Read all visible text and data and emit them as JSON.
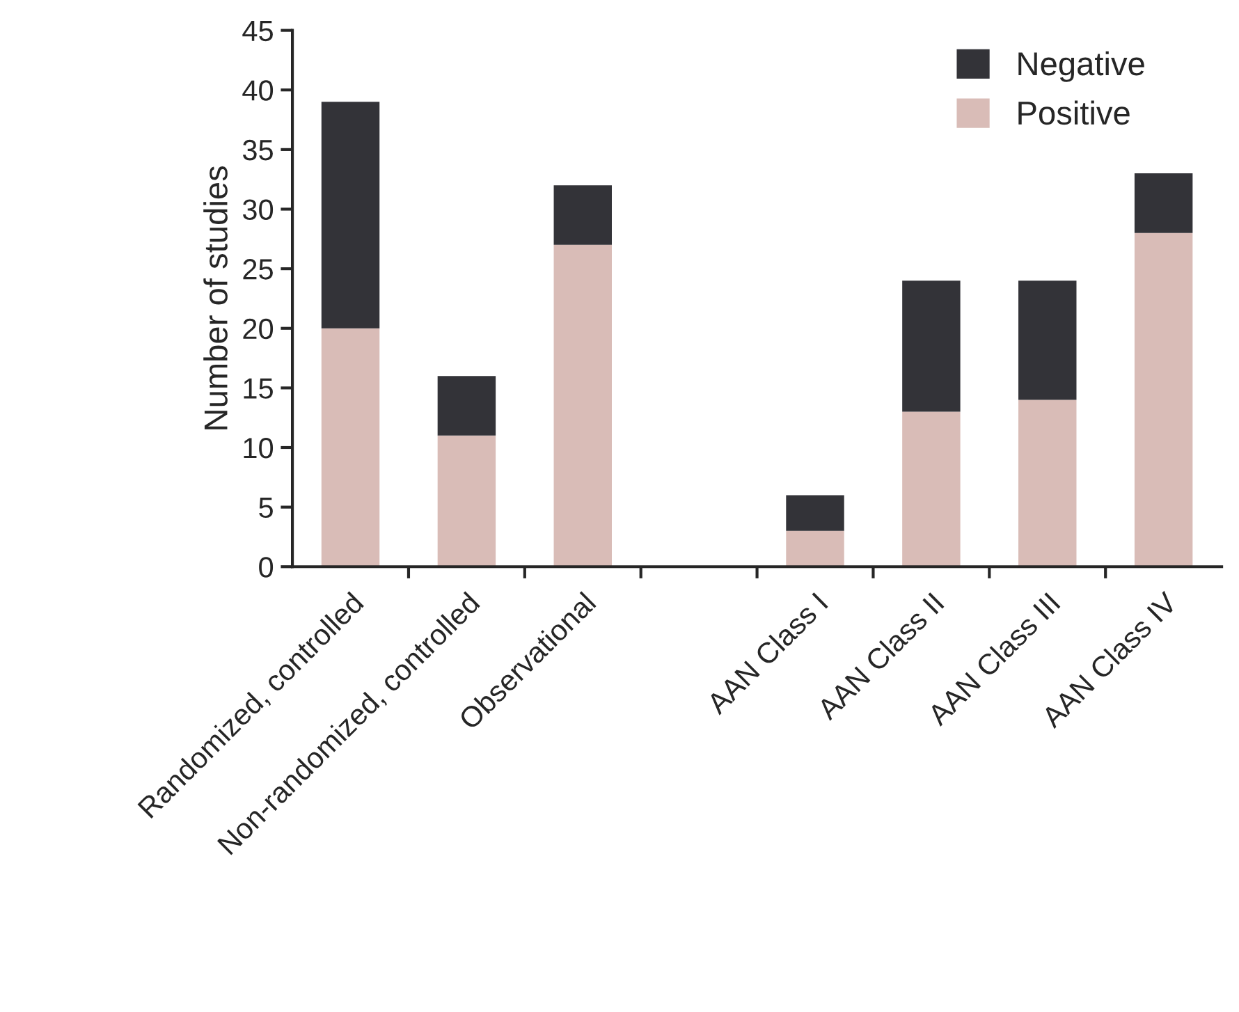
{
  "chart_data": {
    "type": "bar",
    "stacked": true,
    "ylabel": "Number of studies",
    "categories": [
      "Randomized, controlled",
      "Non-randomized, controlled",
      "Observational",
      null,
      "AAN Class I",
      "AAN Class II",
      "AAN Class III",
      "AAN Class IV"
    ],
    "series": [
      {
        "name": "Positive",
        "color": "#d9bcb7",
        "values": [
          20,
          11,
          27,
          null,
          3,
          13,
          14,
          28
        ]
      },
      {
        "name": "Negative",
        "color": "#333338",
        "values": [
          19,
          5,
          5,
          null,
          3,
          11,
          10,
          5
        ]
      }
    ],
    "ylim": [
      0,
      45
    ],
    "yticks": [
      0,
      5,
      10,
      15,
      20,
      25,
      30,
      35,
      40,
      45
    ],
    "grid": false,
    "legend": "top right"
  }
}
